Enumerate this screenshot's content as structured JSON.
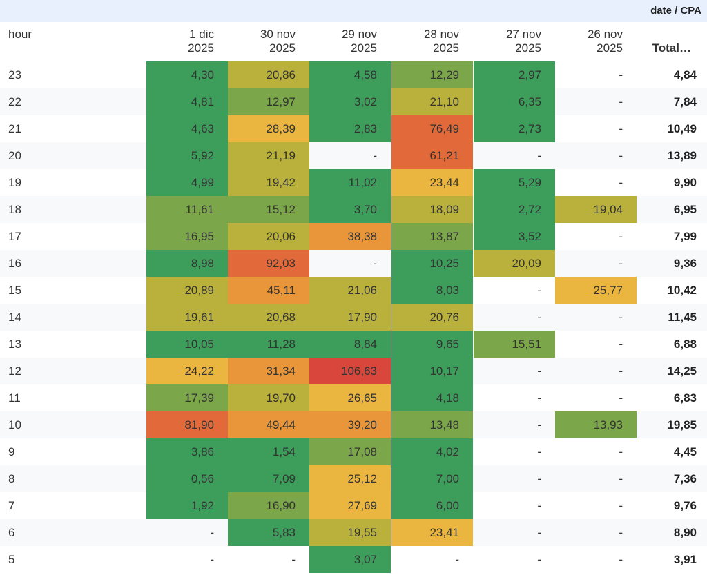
{
  "table": {
    "metric_label": "date / CPA",
    "row_header": "hour",
    "total_header": "Total…",
    "columns": [
      {
        "day": "1 dic",
        "year": "2025"
      },
      {
        "day": "30 nov",
        "year": "2025"
      },
      {
        "day": "29 nov",
        "year": "2025"
      },
      {
        "day": "28 nov",
        "year": "2025"
      },
      {
        "day": "27 nov",
        "year": "2025"
      },
      {
        "day": "26 nov",
        "year": "2025"
      }
    ],
    "rows": [
      {
        "hour": "23",
        "cells": [
          "4,30",
          "20,86",
          "4,58",
          "12,29",
          "2,97",
          "-"
        ],
        "total": "4,84"
      },
      {
        "hour": "22",
        "cells": [
          "4,81",
          "12,97",
          "3,02",
          "21,10",
          "6,35",
          "-"
        ],
        "total": "7,84"
      },
      {
        "hour": "21",
        "cells": [
          "4,63",
          "28,39",
          "2,83",
          "76,49",
          "2,73",
          "-"
        ],
        "total": "10,49"
      },
      {
        "hour": "20",
        "cells": [
          "5,92",
          "21,19",
          "-",
          "61,21",
          "-",
          "-"
        ],
        "total": "13,89"
      },
      {
        "hour": "19",
        "cells": [
          "4,99",
          "19,42",
          "11,02",
          "23,44",
          "5,29",
          "-"
        ],
        "total": "9,90"
      },
      {
        "hour": "18",
        "cells": [
          "11,61",
          "15,12",
          "3,70",
          "18,09",
          "2,72",
          "19,04"
        ],
        "total": "6,95"
      },
      {
        "hour": "17",
        "cells": [
          "16,95",
          "20,06",
          "38,38",
          "13,87",
          "3,52",
          "-"
        ],
        "total": "7,99"
      },
      {
        "hour": "16",
        "cells": [
          "8,98",
          "92,03",
          "-",
          "10,25",
          "20,09",
          "-"
        ],
        "total": "9,36"
      },
      {
        "hour": "15",
        "cells": [
          "20,89",
          "45,11",
          "21,06",
          "8,03",
          "-",
          "25,77"
        ],
        "total": "10,42"
      },
      {
        "hour": "14",
        "cells": [
          "19,61",
          "20,68",
          "17,90",
          "20,76",
          "-",
          "-"
        ],
        "total": "11,45"
      },
      {
        "hour": "13",
        "cells": [
          "10,05",
          "11,28",
          "8,84",
          "9,65",
          "15,51",
          "-"
        ],
        "total": "6,88"
      },
      {
        "hour": "12",
        "cells": [
          "24,22",
          "31,34",
          "106,63",
          "10,17",
          "-",
          "-"
        ],
        "total": "14,25"
      },
      {
        "hour": "11",
        "cells": [
          "17,39",
          "19,70",
          "26,65",
          "4,18",
          "-",
          "-"
        ],
        "total": "6,83"
      },
      {
        "hour": "10",
        "cells": [
          "81,90",
          "49,44",
          "39,20",
          "13,48",
          "-",
          "13,93"
        ],
        "total": "19,85"
      },
      {
        "hour": "9",
        "cells": [
          "3,86",
          "1,54",
          "17,08",
          "4,02",
          "-",
          "-"
        ],
        "total": "4,45"
      },
      {
        "hour": "8",
        "cells": [
          "0,56",
          "7,09",
          "25,12",
          "7,00",
          "-",
          "-"
        ],
        "total": "7,36"
      },
      {
        "hour": "7",
        "cells": [
          "1,92",
          "16,90",
          "27,69",
          "6,00",
          "-",
          "-"
        ],
        "total": "9,76"
      },
      {
        "hour": "6",
        "cells": [
          "-",
          "5,83",
          "19,55",
          "23,41",
          "-",
          "-"
        ],
        "total": "8,90"
      },
      {
        "hour": "5",
        "cells": [
          "-",
          "-",
          "3,07",
          "-",
          "-",
          "-"
        ],
        "total": "3,91"
      }
    ]
  },
  "chart_data": {
    "type": "heatmap",
    "row_label": "hour",
    "column_label": "date",
    "metric": "CPA",
    "x": [
      "1 dic 2025",
      "30 nov 2025",
      "29 nov 2025",
      "28 nov 2025",
      "27 nov 2025",
      "26 nov 2025"
    ],
    "y": [
      23,
      22,
      21,
      20,
      19,
      18,
      17,
      16,
      15,
      14,
      13,
      12,
      11,
      10,
      9,
      8,
      7,
      6,
      5
    ],
    "values": [
      [
        4.3,
        20.86,
        4.58,
        12.29,
        2.97,
        null
      ],
      [
        4.81,
        12.97,
        3.02,
        21.1,
        6.35,
        null
      ],
      [
        4.63,
        28.39,
        2.83,
        76.49,
        2.73,
        null
      ],
      [
        5.92,
        21.19,
        null,
        61.21,
        null,
        null
      ],
      [
        4.99,
        19.42,
        11.02,
        23.44,
        5.29,
        null
      ],
      [
        11.61,
        15.12,
        3.7,
        18.09,
        2.72,
        19.04
      ],
      [
        16.95,
        20.06,
        38.38,
        13.87,
        3.52,
        null
      ],
      [
        8.98,
        92.03,
        null,
        10.25,
        20.09,
        null
      ],
      [
        20.89,
        45.11,
        21.06,
        8.03,
        null,
        25.77
      ],
      [
        19.61,
        20.68,
        17.9,
        20.76,
        null,
        null
      ],
      [
        10.05,
        11.28,
        8.84,
        9.65,
        15.51,
        null
      ],
      [
        24.22,
        31.34,
        106.63,
        10.17,
        null,
        null
      ],
      [
        17.39,
        19.7,
        26.65,
        4.18,
        null,
        null
      ],
      [
        81.9,
        49.44,
        39.2,
        13.48,
        null,
        13.93
      ],
      [
        3.86,
        1.54,
        17.08,
        4.02,
        null,
        null
      ],
      [
        0.56,
        7.09,
        25.12,
        7.0,
        null,
        null
      ],
      [
        1.92,
        16.9,
        27.69,
        6.0,
        null,
        null
      ],
      [
        null,
        5.83,
        19.55,
        23.41,
        null,
        null
      ],
      [
        null,
        null,
        3.07,
        null,
        null,
        null
      ]
    ],
    "totals": [
      4.84,
      7.84,
      10.49,
      13.89,
      9.9,
      6.95,
      7.99,
      9.36,
      10.42,
      11.45,
      6.88,
      14.25,
      6.83,
      19.85,
      4.45,
      7.36,
      9.76,
      8.9,
      3.91
    ],
    "color_scale": {
      "low": "#3d9d5b",
      "mid_low": "#7ba649",
      "mid": "#b9b13c",
      "mid_high": "#eab63f",
      "high_1": "#e9963a",
      "high_2": "#e2693a",
      "max": "#d9463b"
    }
  }
}
